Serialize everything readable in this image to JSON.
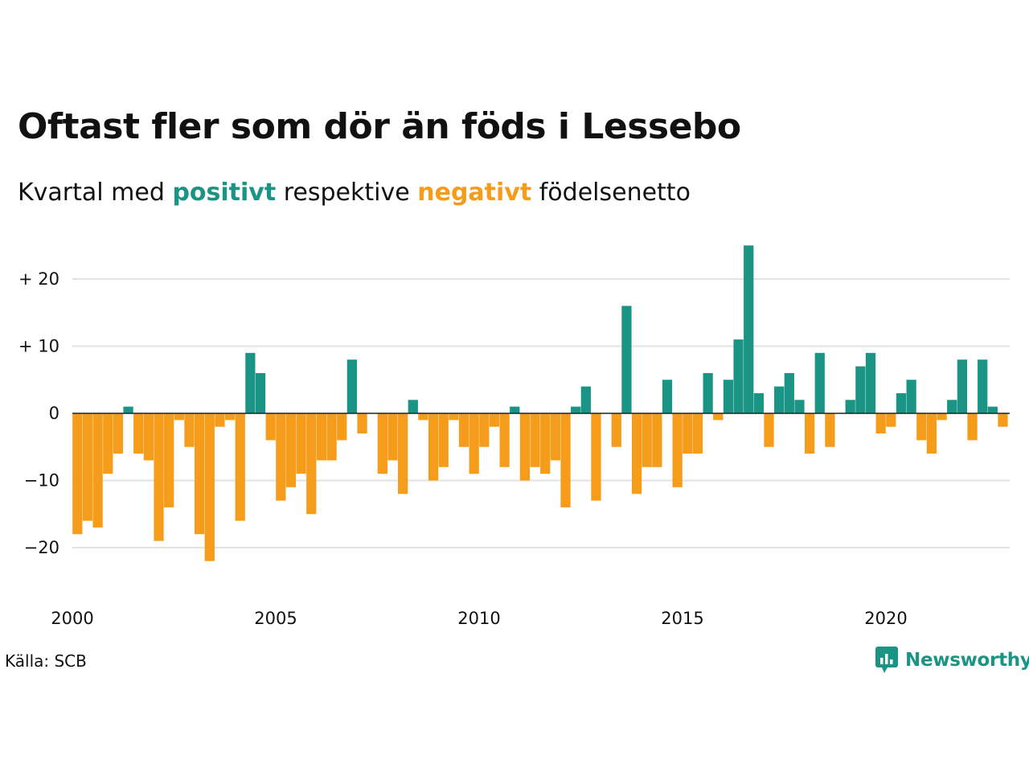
{
  "header": {
    "title": "Oftast fler som dör än föds i Lessebo",
    "subtitle_prefix": "Kvartal med",
    "subtitle_positive": "positivt",
    "subtitle_middle": "respektive",
    "subtitle_negative": "negativt",
    "subtitle_suffix": "födelsenetto"
  },
  "footer": {
    "source": "Källa: SCB",
    "brand": "Newsworthy"
  },
  "colors": {
    "positive": "#1a9485",
    "negative": "#f59c1a",
    "grid": "#e2e2e2",
    "zero_line": "#222222"
  },
  "chart_data": {
    "type": "bar",
    "x_start": "2000 Q1",
    "values": [
      -18,
      -16,
      -17,
      -9,
      -6,
      1,
      -6,
      -7,
      -19,
      -14,
      -1,
      -5,
      -18,
      -22,
      -2,
      -1,
      -16,
      9,
      6,
      -4,
      -13,
      -11,
      -9,
      -15,
      -7,
      -7,
      -4,
      8,
      -3,
      0,
      -9,
      -7,
      -12,
      2,
      -1,
      -10,
      -8,
      -1,
      -5,
      -9,
      -5,
      -2,
      -8,
      1,
      -10,
      -8,
      -9,
      -7,
      -14,
      1,
      4,
      -13,
      0,
      -5,
      16,
      -12,
      -8,
      -8,
      5,
      -11,
      -6,
      -6,
      6,
      -1,
      5,
      11,
      25,
      3,
      -5,
      4,
      6,
      2,
      -6,
      9,
      -5,
      0,
      2,
      7,
      9,
      -3,
      -2,
      3,
      5,
      -4,
      -6,
      -1,
      2,
      8,
      -4,
      8,
      1,
      -2
    ],
    "ylim": [
      -26,
      25
    ],
    "y_ticks": [
      {
        "value": 20,
        "label": "+ 20"
      },
      {
        "value": 10,
        "label": "+ 10"
      },
      {
        "value": 0,
        "label": "0"
      },
      {
        "value": -10,
        "label": "−10"
      },
      {
        "value": -20,
        "label": "−20"
      }
    ],
    "x_ticks": [
      {
        "value": 2000,
        "label": "2000"
      },
      {
        "value": 2005,
        "label": "2005"
      },
      {
        "value": 2010,
        "label": "2010"
      },
      {
        "value": 2015,
        "label": "2015"
      },
      {
        "value": 2020,
        "label": "2020"
      }
    ],
    "grid": true,
    "legend": "none"
  }
}
